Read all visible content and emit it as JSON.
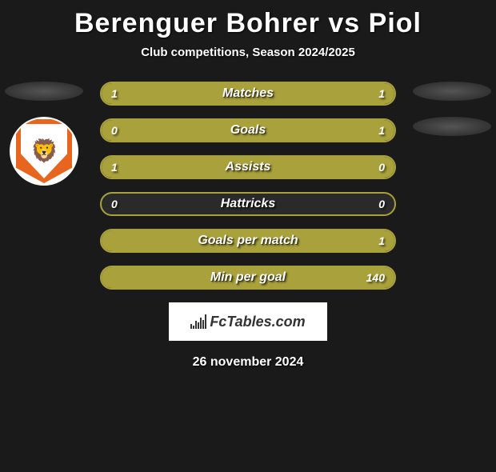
{
  "title": "Berenguer Bohrer vs Piol",
  "subtitle": "Club competitions, Season 2024/2025",
  "colors": {
    "bar_fill": "#a9a13b",
    "bar_border": "#a9a13b",
    "background": "#1a1a1a",
    "text": "#ffffff",
    "badge_primary": "#e8651f",
    "attribution_bg": "#ffffff"
  },
  "typography": {
    "title_fontsize": 34,
    "subtitle_fontsize": 15,
    "row_label_fontsize": 16,
    "value_fontsize": 14,
    "date_fontsize": 16
  },
  "left_player_badge": "club-badge-orange-shield",
  "rows": [
    {
      "label": "Matches",
      "left_val": "1",
      "right_val": "1",
      "left_pct": 50,
      "right_pct": 50
    },
    {
      "label": "Goals",
      "left_val": "0",
      "right_val": "1",
      "left_pct": 18,
      "right_pct": 82
    },
    {
      "label": "Assists",
      "left_val": "1",
      "right_val": "0",
      "left_pct": 82,
      "right_pct": 18
    },
    {
      "label": "Hattricks",
      "left_val": "0",
      "right_val": "0",
      "left_pct": 0,
      "right_pct": 0
    },
    {
      "label": "Goals per match",
      "left_val": "",
      "right_val": "1",
      "left_pct": 0,
      "right_pct": 100
    },
    {
      "label": "Min per goal",
      "left_val": "",
      "right_val": "140",
      "left_pct": 0,
      "right_pct": 100
    }
  ],
  "attribution": "FcTables.com",
  "date": "26 november 2024"
}
